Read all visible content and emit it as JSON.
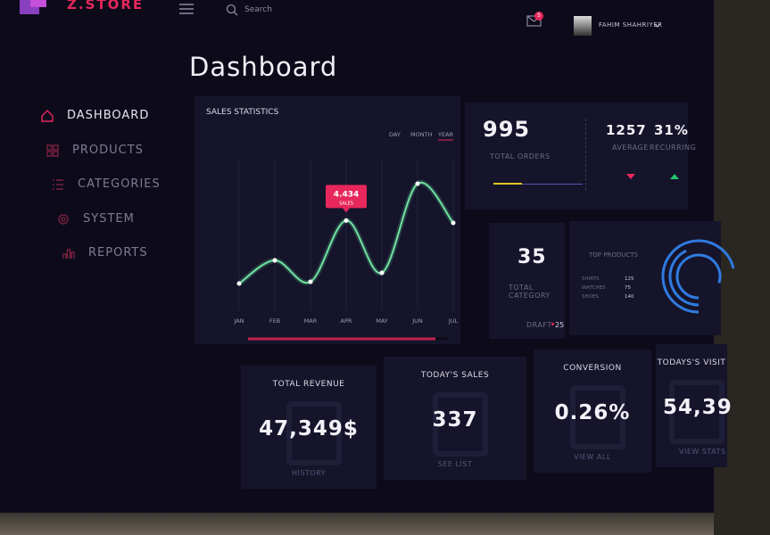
{
  "topbar": {
    "brand": "Z.STORE",
    "search": "Search",
    "notifications": "5",
    "user": "FAHIM SHAHRIYER"
  },
  "page_title": "Dashboard",
  "nav": [
    "DASHBOARD",
    "PRODUCTS",
    "CATEGORIES",
    "SYSTEM",
    "REPORTS"
  ],
  "sales_chart": {
    "type": "line",
    "title": "SALES STATISTICS",
    "tabs": [
      "DAY",
      "MONTH",
      "YEAR"
    ],
    "categories": [
      "JAN",
      "FEB",
      "MAR",
      "APR",
      "MAY",
      "JUN",
      "JUL"
    ],
    "values": [
      0.9,
      2.2,
      1.0,
      4.434,
      1.5,
      6.5,
      4.3
    ],
    "ylim": [
      0,
      7
    ],
    "color": "#6fe3a0",
    "tooltip_label": "SALES"
  },
  "orders": {
    "total": "995",
    "total_label": "TOTAL ORDERS",
    "average": "1257",
    "average_label": "AVERAGE",
    "recurring": "31%",
    "recurring_label": "RECURRING"
  },
  "category": {
    "total": "35",
    "label": "TOTAL CATEGORY",
    "draft_label": "DRAFT",
    "draft": "25"
  },
  "top_products": {
    "title": "TOP PRODUCTS",
    "items": [
      {
        "name": "SHIRTS",
        "value": 125
      },
      {
        "name": "WATCHES",
        "value": 75
      },
      {
        "name": "SHOES",
        "value": 140
      }
    ]
  },
  "stats": [
    {
      "title": "TOTAL REVENUE",
      "value": "47,349$",
      "link": "HISTORY"
    },
    {
      "title": "TODAY'S SALES",
      "value": "337",
      "link": "SEE LIST"
    },
    {
      "title": "CONVERSION",
      "value": "0.26%",
      "link": "VIEW ALL"
    },
    {
      "title": "TODAYS'S VISIT",
      "value": "54,39",
      "link": "VIEW STATS"
    }
  ]
}
